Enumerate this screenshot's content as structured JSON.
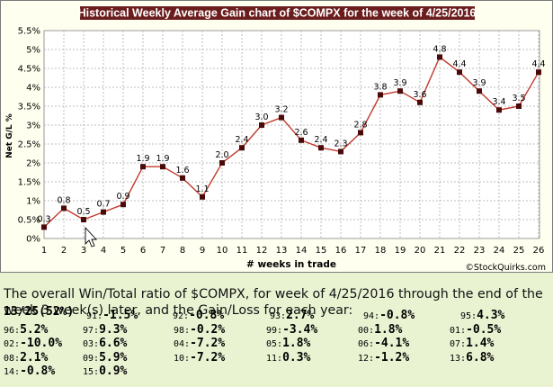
{
  "chart_data": {
    "type": "line",
    "title": "Historical Weekly Average Gain chart of $COMPX for the week of 4/25/2016",
    "xlabel": "# weeks in trade",
    "ylabel": "Net G/L %",
    "ylim": [
      0,
      5.5
    ],
    "ytick_labels": [
      "0%",
      "0.5%",
      "1%",
      "1.5%",
      "2%",
      "2.5%",
      "3%",
      "3.5%",
      "4%",
      "4.5%",
      "5%",
      "5.5%"
    ],
    "x": [
      1,
      2,
      3,
      4,
      5,
      6,
      7,
      8,
      9,
      10,
      11,
      12,
      13,
      14,
      15,
      16,
      17,
      18,
      19,
      20,
      21,
      22,
      23,
      24,
      25,
      26
    ],
    "values": [
      0.3,
      0.8,
      0.5,
      0.7,
      0.9,
      1.9,
      1.9,
      1.6,
      1.1,
      2.0,
      2.4,
      3.0,
      3.2,
      2.6,
      2.4,
      2.3,
      2.8,
      3.8,
      3.9,
      3.6,
      4.8,
      4.4,
      3.9,
      3.4,
      3.5,
      4.4
    ],
    "labels": [
      "0.3",
      "0.8",
      "0.5",
      "0.7",
      "0.9",
      "1.9",
      "1.9",
      "1.6",
      "1.1",
      "2.0",
      "2.4",
      "3.0",
      "3.2",
      "2.6",
      "2.4",
      "2.3",
      "2.8",
      "3.8",
      "3.9",
      "3.6",
      "4.8",
      "4.4",
      "3.9",
      "3.4",
      "3.5",
      "4.4"
    ],
    "grid": true,
    "credit": "©StockQuirks.com",
    "colors": {
      "line": "#c0392b",
      "marker": "#4a0a0a",
      "title_bg": "#6b1d1d",
      "title_fg": "#ffffff",
      "plot_bg": "#ffffff",
      "grid": "#bdbdbd"
    }
  },
  "summary": {
    "text": "The overall Win/Total ratio of $COMPX, for week of 4/25/2016 through the end of the week 3 week(s) later, and the Gain/Loss for each year:",
    "overall": "13/25(52%)"
  },
  "years": [
    {
      "yr": "91:",
      "val": "-1.5%"
    },
    {
      "yr": "92:",
      "val": "-0.8%"
    },
    {
      "yr": "93:",
      "val": "2.7%"
    },
    {
      "yr": "94:",
      "val": "-0.8%"
    },
    {
      "yr": "95:",
      "val": "4.3%"
    },
    {
      "yr": "96:",
      "val": "5.2%"
    },
    {
      "yr": "97:",
      "val": "9.3%"
    },
    {
      "yr": "98:",
      "val": "-0.2%"
    },
    {
      "yr": "99:",
      "val": "-3.4%"
    },
    {
      "yr": "00:",
      "val": "1.8%"
    },
    {
      "yr": "01:",
      "val": "-0.5%"
    },
    {
      "yr": "02:",
      "val": "-10.0%"
    },
    {
      "yr": "03:",
      "val": "6.6%"
    },
    {
      "yr": "04:",
      "val": "-7.2%"
    },
    {
      "yr": "05:",
      "val": "1.8%"
    },
    {
      "yr": "06:",
      "val": "-4.1%"
    },
    {
      "yr": "07:",
      "val": "1.4%"
    },
    {
      "yr": "08:",
      "val": "2.1%"
    },
    {
      "yr": "09:",
      "val": "5.9%"
    },
    {
      "yr": "10:",
      "val": "-7.2%"
    },
    {
      "yr": "11:",
      "val": "0.3%"
    },
    {
      "yr": "12:",
      "val": "-1.2%"
    },
    {
      "yr": "13:",
      "val": "6.8%"
    },
    {
      "yr": "14:",
      "val": "-0.8%"
    },
    {
      "yr": "15:",
      "val": "0.9%"
    }
  ]
}
